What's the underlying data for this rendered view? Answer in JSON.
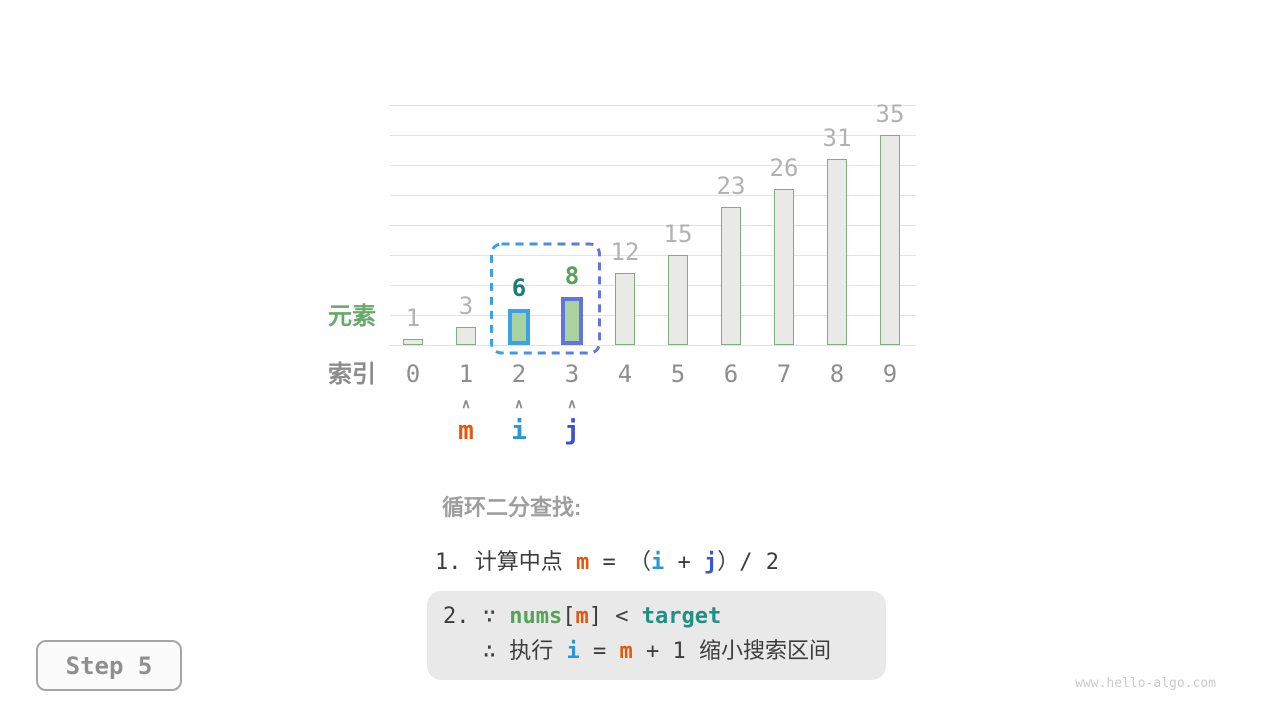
{
  "colors": {
    "text": "#3d3d3d",
    "m": "#e2580c",
    "i": "#2b95dc",
    "j": "#3d51d4",
    "nums": "#55a357",
    "target": "#1f9084",
    "teal6": "#1b7f77",
    "green8": "#57a159",
    "grid": "#e3e3e3",
    "bar_fill": "#e9eae7",
    "bar_border": "#7fae7f",
    "hl_fill": "#a8d2a0",
    "hl_i_border": "#3aa2e8",
    "hl_j_border": "#6574da",
    "value_gray": "#b2b2b2",
    "index_gray": "#8e8e8e",
    "axis_green": "#6aa86a",
    "axis_gray": "#8c8c8c",
    "muted_title": "#9e9e9e",
    "caret_gray": "#8a8a8a",
    "code_box_bg": "#e9e9e9",
    "step_text": "#8f8f8f",
    "watermark_gray": "#cbcbcb"
  },
  "chart_data": {
    "type": "bar",
    "title": "",
    "categories": [
      "0",
      "1",
      "2",
      "3",
      "4",
      "5",
      "6",
      "7",
      "8",
      "9"
    ],
    "values": [
      1,
      3,
      6,
      8,
      12,
      15,
      23,
      26,
      31,
      35
    ],
    "xlabel": "索引",
    "ylabel": "元素",
    "ylim": [
      0,
      40
    ],
    "gridline_step": 5,
    "grid": true,
    "legend": false,
    "highlights": [
      {
        "index": 2,
        "border_color_key": "hl_i_border",
        "fill_key": "hl_fill",
        "value_label_color_key": "teal6",
        "value_label_bold": true
      },
      {
        "index": 3,
        "border_color_key": "hl_j_border",
        "fill_key": "hl_fill",
        "value_label_color_key": "green8",
        "value_label_bold": true
      }
    ],
    "selection_box": {
      "from_index": 2,
      "to_index": 3
    }
  },
  "pointers": {
    "caret": "∧",
    "items": [
      {
        "name": "m",
        "index": 1,
        "color_key": "m"
      },
      {
        "name": "i",
        "index": 2,
        "color_key": "i"
      },
      {
        "name": "j",
        "index": 3,
        "color_key": "j"
      }
    ]
  },
  "explanation": {
    "title": "循环二分查找:",
    "line1": [
      {
        "t": "1. 计算中点 ",
        "c": "text"
      },
      {
        "t": "m",
        "c": "m",
        "b": true
      },
      {
        "t": " = ",
        "c": "text"
      },
      {
        "t": "（",
        "c": "text"
      },
      {
        "t": "i",
        "c": "i",
        "b": true
      },
      {
        "t": " + ",
        "c": "text"
      },
      {
        "t": "j",
        "c": "j",
        "b": true
      },
      {
        "t": "）/ 2",
        "c": "text"
      }
    ],
    "box_line1": [
      {
        "t": "2. ∵ ",
        "c": "text"
      },
      {
        "t": "nums",
        "c": "nums",
        "b": true
      },
      {
        "t": "[",
        "c": "text"
      },
      {
        "t": "m",
        "c": "m",
        "b": true
      },
      {
        "t": "]",
        "c": "text"
      },
      {
        "t": " < ",
        "c": "text"
      },
      {
        "t": "target",
        "c": "target",
        "b": true
      }
    ],
    "box_line2": [
      {
        "t": "   ∴ 执行 ",
        "c": "text"
      },
      {
        "t": "i",
        "c": "i",
        "b": true
      },
      {
        "t": " = ",
        "c": "text"
      },
      {
        "t": "m",
        "c": "m",
        "b": true
      },
      {
        "t": " + 1 缩小搜索区间",
        "c": "text"
      }
    ]
  },
  "step_badge": {
    "label": "Step 5"
  },
  "watermark": {
    "label": "www.hello-algo.com"
  }
}
